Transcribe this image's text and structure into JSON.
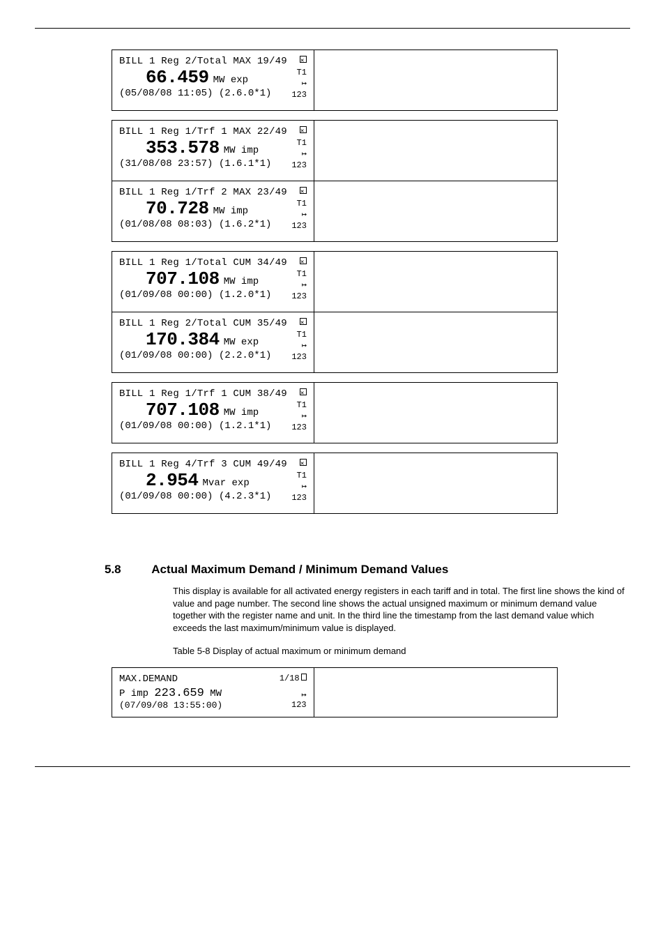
{
  "panels": [
    {
      "header": "BILL 1 Reg 2/Total MAX 19/49",
      "value": "66.459",
      "unit": "MW exp",
      "footer": "(05/08/08 11:05) (2.6.0*1)",
      "side_t": "T1",
      "side_code": "123"
    },
    {
      "header": "BILL 1 Reg 1/Trf 1 MAX 22/49",
      "value": "353.578",
      "unit": "MW imp",
      "footer": "(31/08/08 23:57) (1.6.1*1)",
      "side_t": "T1",
      "side_code": "123"
    },
    {
      "header": "BILL 1 Reg 1/Trf 2 MAX 23/49",
      "value": "70.728",
      "unit": "MW imp",
      "footer": "(01/08/08 08:03) (1.6.2*1)",
      "side_t": "T1",
      "side_code": "123"
    },
    {
      "header": "BILL 1 Reg 1/Total CUM 34/49",
      "value": "707.108",
      "unit": "MW imp",
      "footer": "(01/09/08 00:00) (1.2.0*1)",
      "side_t": "T1",
      "side_code": "123"
    },
    {
      "header": "BILL 1 Reg 2/Total CUM 35/49",
      "value": "170.384",
      "unit": "MW exp",
      "footer": "(01/09/08 00:00) (2.2.0*1)",
      "side_t": "T1",
      "side_code": "123"
    },
    {
      "header": "BILL 1 Reg 1/Trf 1 CUM 38/49",
      "value": "707.108",
      "unit": "MW imp",
      "footer": "(01/09/08 00:00) (1.2.1*1)",
      "side_t": "T1",
      "side_code": "123"
    },
    {
      "header": "BILL 1 Reg 4/Trf 3 CUM 49/49",
      "value": "2.954",
      "unit": "Mvar exp",
      "footer": "(01/09/08 00:00) (4.2.3*1)",
      "side_t": "T1",
      "side_code": "123"
    }
  ],
  "gaps_after": [
    0,
    2,
    4,
    5
  ],
  "section": {
    "number": "5.8",
    "title": "Actual Maximum Demand / Minimum Demand Values",
    "body": "This display is available for all activated energy registers in each tariff and in total. The first line shows the kind of value and page number. The second line shows the actual unsigned maximum or minimum demand value together with the register name and unit. In the third line the timestamp from the last demand value which exceeds the last maximum/minimum value is displayed.",
    "table_lead": "Table 5-8 Display of actual maximum or minimum demand"
  },
  "demand_panel": {
    "header_left": "MAX.DEMAND",
    "header_right": "1/18",
    "row_label": "P imp",
    "row_value": "223.659",
    "row_unit": "MW",
    "footer": "(07/09/08 13:55:00)",
    "side_code": "123"
  },
  "colors": {
    "page_bg": "#ffffff",
    "text": "#000000",
    "border": "#000000"
  }
}
